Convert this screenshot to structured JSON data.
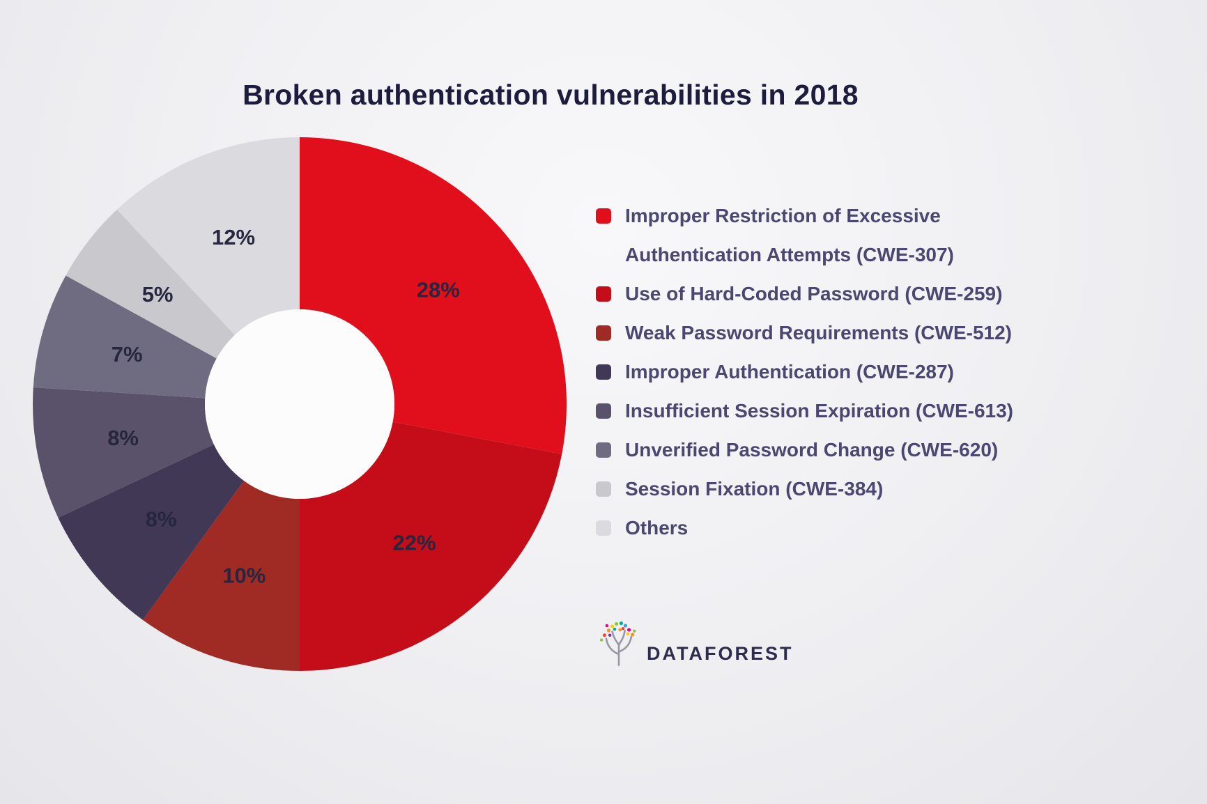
{
  "chart_data": {
    "type": "pie",
    "variant": "donut",
    "title": "Broken authentication vulnerabilities in 2018",
    "start_angle_deg": 0,
    "direction": "clockwise",
    "inner_radius_ratio": 0.355,
    "legend_position": "right",
    "slices": [
      {
        "label": "Improper Restriction of Excessive Authentication Attempts (CWE-307)",
        "value": 28,
        "display": "28%",
        "color": "#e10e1c"
      },
      {
        "label": "Use of Hard-Coded Password (CWE-259)",
        "value": 22,
        "display": "22%",
        "color": "#c40d18"
      },
      {
        "label": "Weak Password Requirements (CWE-512)",
        "value": 10,
        "display": "10%",
        "color": "#9f2b24"
      },
      {
        "label": "Improper Authentication (CWE-287)",
        "value": 8,
        "display": "8%",
        "color": "#413855"
      },
      {
        "label": "Insufficient Session Expiration (CWE-613)",
        "value": 8,
        "display": "8%",
        "color": "#5a526a"
      },
      {
        "label": "Unverified Password Change (CWE-620)",
        "value": 7,
        "display": "7%",
        "color": "#6f6b81"
      },
      {
        "label": "Session Fixation (CWE-384)",
        "value": 5,
        "display": "5%",
        "color": "#c8c8cd"
      },
      {
        "label": "Others",
        "value": 12,
        "display": "12%",
        "color": "#dbdbdf"
      }
    ],
    "hole_color": "#fcfcfd",
    "percent_label_color": "#26263f"
  },
  "logo": {
    "text": "DATAFOREST"
  }
}
